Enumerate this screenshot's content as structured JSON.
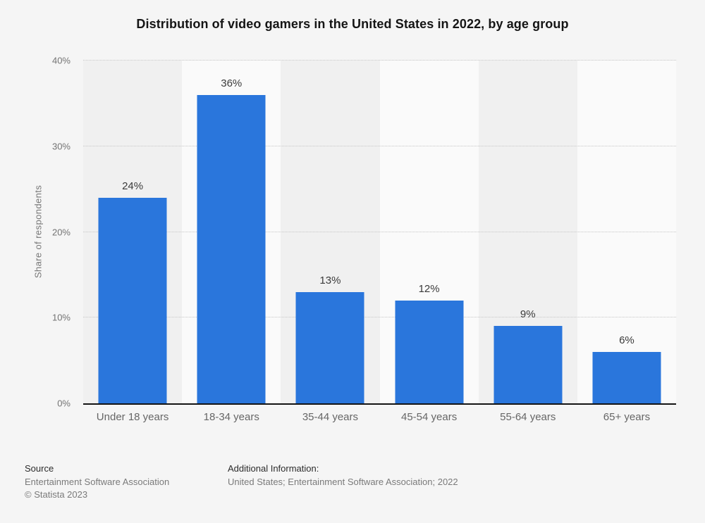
{
  "chart_data": {
    "type": "bar",
    "title": "Distribution of video gamers in the United States in 2022, by age group",
    "categories": [
      "Under 18 years",
      "18-34 years",
      "35-44 years",
      "45-54 years",
      "55-64 years",
      "65+ years"
    ],
    "values": [
      24,
      36,
      13,
      12,
      9,
      6
    ],
    "value_labels": [
      "24%",
      "36%",
      "13%",
      "12%",
      "9%",
      "6%"
    ],
    "xlabel": "",
    "ylabel": "Share of respondents",
    "ylim": [
      0,
      40
    ],
    "yticks": [
      0,
      10,
      20,
      30,
      40
    ],
    "ytick_labels": [
      "0%",
      "10%",
      "20%",
      "30%",
      "40%"
    ],
    "grid": "horizontal-dotted",
    "legend": "none",
    "bar_color": "#2a76dc",
    "band_colors": [
      "#f0f0f0",
      "#fafafa"
    ],
    "page_background": "#f5f5f5",
    "axis_line_color": "#141414"
  },
  "footer": {
    "source_heading": "Source",
    "source_line1": "Entertainment Software Association",
    "source_line2": "© Statista 2023",
    "additional_heading": "Additional Information:",
    "additional_line1": "United States; Entertainment Software Association; 2022"
  }
}
